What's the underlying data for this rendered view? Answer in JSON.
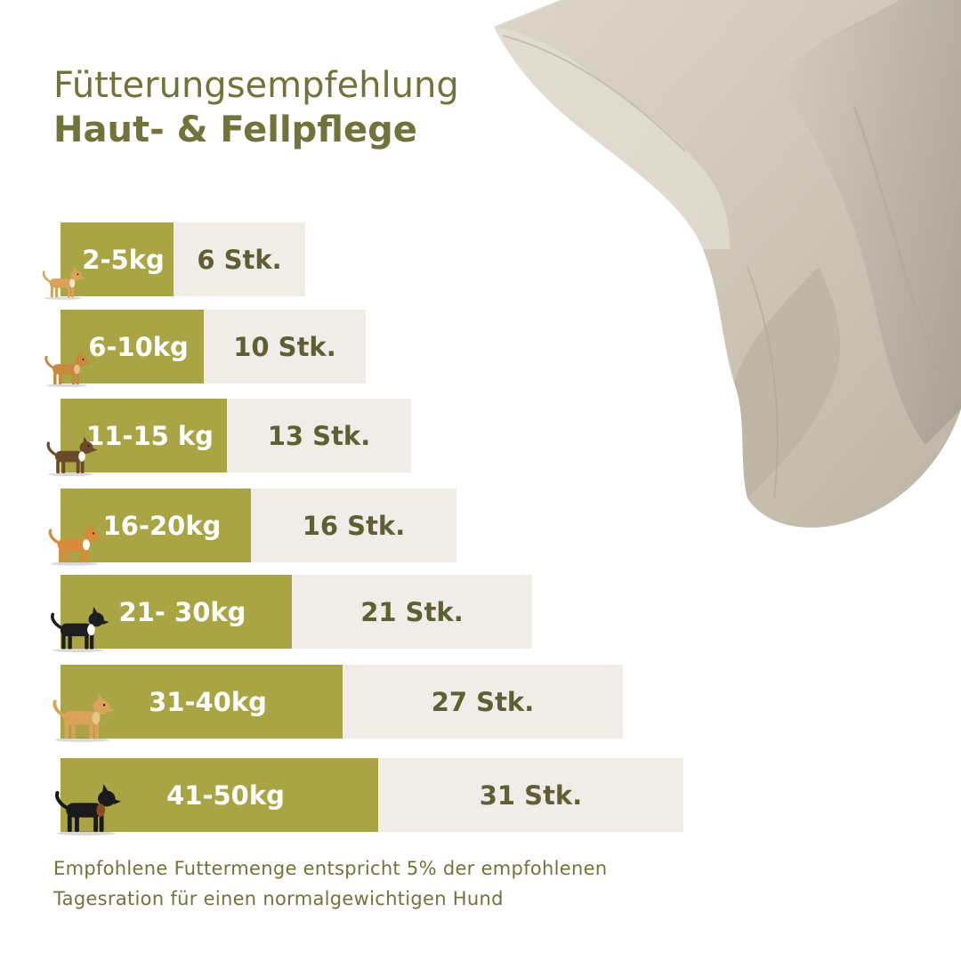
{
  "title": {
    "line1": "Fütterungsempfehlung",
    "line2": "Haut- & Fellpflege"
  },
  "colors": {
    "weight_bar": "#a9a444",
    "count_bar": "#f0ede9",
    "title_text": "#72733a",
    "count_text": "#5f5f33"
  },
  "chart_data": {
    "type": "bar",
    "categories": [
      "2-5kg",
      "6-10kg",
      "11-15 kg",
      "16-20kg",
      "21- 30kg",
      "31-40kg",
      "41-50kg"
    ],
    "values": [
      6,
      10,
      13,
      16,
      21,
      27,
      31
    ],
    "value_labels": [
      "6 Stk.",
      "10 Stk.",
      "13 Stk.",
      "16 Stk.",
      "21 Stk.",
      "27 Stk.",
      "31 Stk."
    ],
    "dog_icons": [
      "chihuahua-icon",
      "small-terrier-icon",
      "beagle-icon",
      "corgi-icon",
      "border-collie-icon",
      "labrador-icon",
      "rottweiler-icon"
    ]
  },
  "footnote": {
    "line1": "Empfohlene Futtermenge entspricht 5% der empfohlenen",
    "line2": "Tagesration für einen normalgewichtigen Hund"
  }
}
